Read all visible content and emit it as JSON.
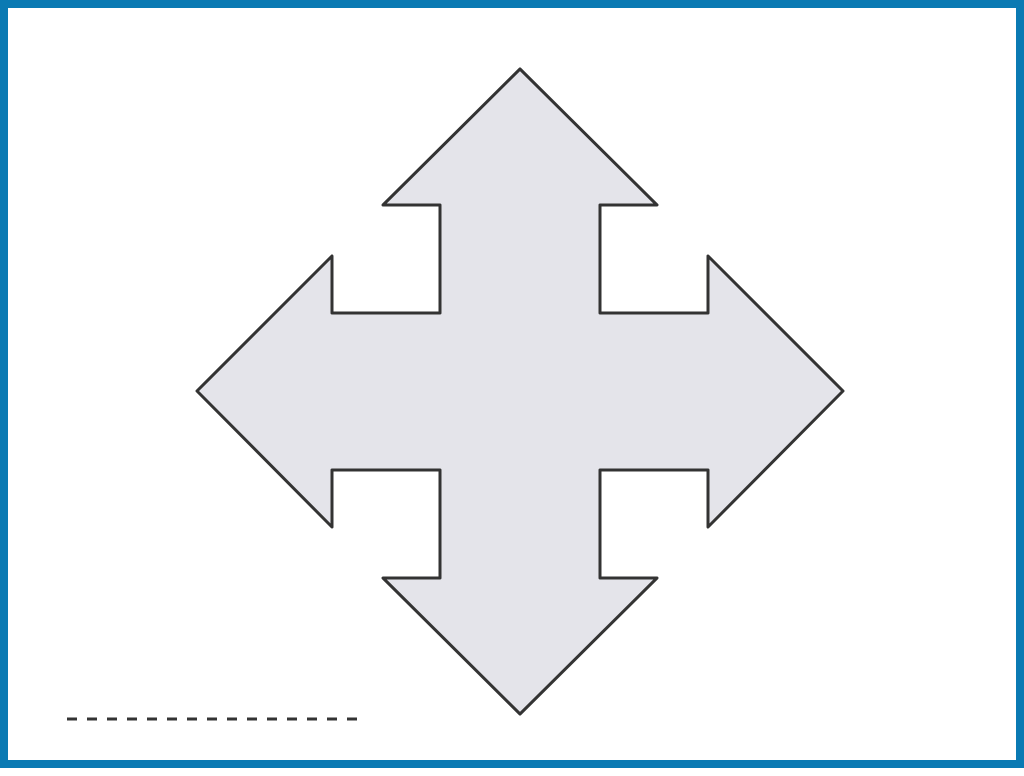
{
  "colors": {
    "frame_border": "#0a7ab3",
    "background": "#ffffff",
    "shape_fill": "#e4e4ea",
    "shape_stroke": "#333333",
    "dashed_line": "#333333"
  },
  "icons": {
    "main_shape": "four-way-arrow-icon"
  }
}
